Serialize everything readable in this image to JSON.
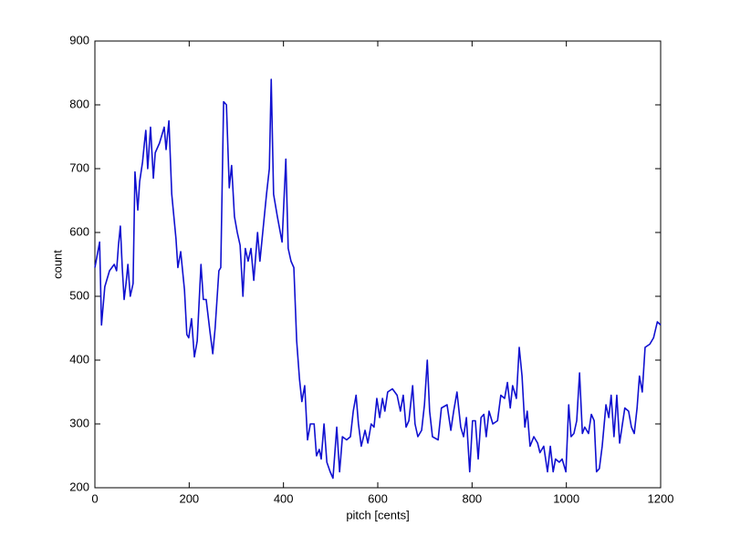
{
  "chart_data": {
    "type": "line",
    "xlabel": "pitch [cents]",
    "ylabel": "count",
    "color": "#1010d0",
    "xlim": [
      0,
      1200
    ],
    "ylim": [
      200,
      900
    ],
    "xticks": [
      0,
      200,
      400,
      600,
      800,
      1000,
      1200
    ],
    "yticks": [
      200,
      300,
      400,
      500,
      600,
      700,
      800,
      900
    ],
    "x": [
      0,
      10,
      14,
      21,
      31,
      41,
      46,
      50,
      54,
      58,
      62,
      66,
      70,
      75,
      81,
      85,
      91,
      95,
      101,
      105,
      108,
      112,
      118,
      124,
      128,
      137,
      147,
      151,
      157,
      163,
      172,
      176,
      182,
      190,
      195,
      199,
      205,
      211,
      217,
      225,
      230,
      236,
      244,
      250,
      255,
      263,
      267,
      273,
      279,
      285,
      290,
      296,
      302,
      308,
      314,
      319,
      325,
      331,
      337,
      345,
      350,
      356,
      364,
      370,
      374,
      379,
      387,
      397,
      405,
      410,
      416,
      422,
      428,
      434,
      439,
      445,
      451,
      457,
      465,
      470,
      476,
      480,
      486,
      492,
      499,
      505,
      513,
      519,
      525,
      534,
      542,
      548,
      554,
      559,
      565,
      573,
      579,
      586,
      592,
      598,
      604,
      610,
      615,
      621,
      631,
      641,
      648,
      654,
      660,
      666,
      674,
      679,
      685,
      693,
      699,
      705,
      710,
      716,
      728,
      735,
      747,
      755,
      761,
      768,
      776,
      782,
      788,
      795,
      801,
      807,
      813,
      819,
      825,
      830,
      836,
      844,
      854,
      861,
      869,
      875,
      881,
      886,
      894,
      900,
      906,
      912,
      917,
      923,
      931,
      939,
      944,
      952,
      960,
      966,
      972,
      977,
      985,
      991,
      999,
      1005,
      1010,
      1016,
      1022,
      1028,
      1034,
      1039,
      1047,
      1053,
      1059,
      1064,
      1070,
      1076,
      1084,
      1090,
      1095,
      1101,
      1107,
      1113,
      1119,
      1124,
      1132,
      1138,
      1144,
      1150,
      1155,
      1161,
      1167,
      1177,
      1185,
      1193,
      1200
    ],
    "values": [
      545,
      585,
      455,
      515,
      540,
      550,
      540,
      580,
      610,
      545,
      495,
      520,
      550,
      500,
      520,
      695,
      635,
      680,
      710,
      740,
      760,
      700,
      765,
      685,
      725,
      740,
      765,
      730,
      775,
      660,
      590,
      545,
      570,
      510,
      440,
      435,
      465,
      405,
      430,
      550,
      495,
      495,
      445,
      410,
      450,
      540,
      545,
      805,
      800,
      670,
      705,
      625,
      600,
      580,
      500,
      575,
      555,
      575,
      525,
      600,
      555,
      600,
      660,
      700,
      840,
      660,
      625,
      585,
      715,
      575,
      555,
      545,
      430,
      370,
      335,
      360,
      275,
      300,
      300,
      250,
      260,
      245,
      300,
      240,
      225,
      215,
      295,
      225,
      280,
      275,
      280,
      320,
      345,
      300,
      265,
      290,
      270,
      300,
      295,
      340,
      310,
      340,
      320,
      350,
      355,
      345,
      320,
      345,
      295,
      305,
      360,
      300,
      280,
      290,
      330,
      400,
      320,
      280,
      275,
      325,
      330,
      290,
      320,
      350,
      295,
      280,
      310,
      225,
      305,
      305,
      245,
      310,
      315,
      280,
      320,
      300,
      305,
      345,
      340,
      365,
      325,
      360,
      340,
      420,
      375,
      295,
      320,
      265,
      280,
      270,
      255,
      265,
      225,
      265,
      225,
      245,
      240,
      245,
      225,
      330,
      280,
      285,
      305,
      380,
      285,
      295,
      285,
      315,
      305,
      225,
      230,
      265,
      330,
      310,
      345,
      280,
      345,
      270,
      300,
      325,
      320,
      295,
      285,
      325,
      375,
      350,
      420,
      425,
      435,
      460,
      455
    ]
  }
}
